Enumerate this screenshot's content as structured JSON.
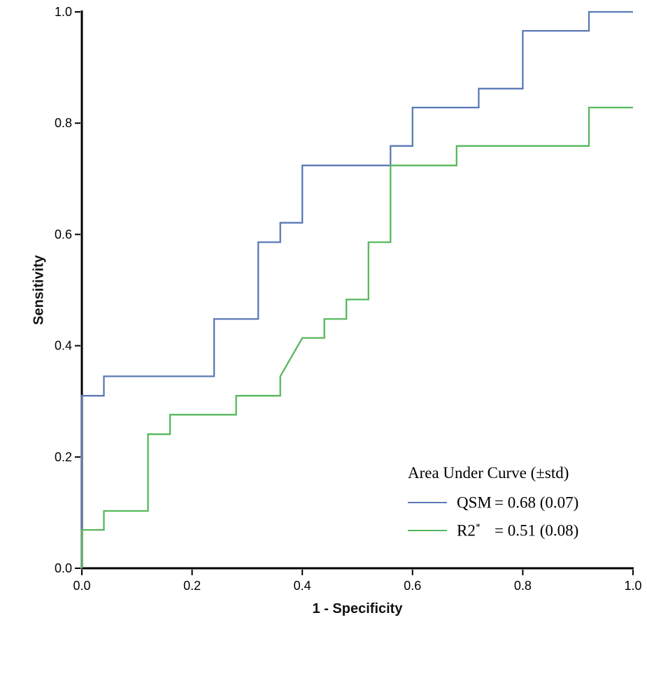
{
  "page": {
    "background": "#ffffff"
  },
  "chart_data": {
    "type": "line",
    "subtype": "roc-step-curves",
    "title": "",
    "xlabel": "1 - Specificity",
    "ylabel": "Sensitivity",
    "xlim": [
      0,
      1
    ],
    "ylim": [
      0,
      1
    ],
    "xticks": [
      "0.0",
      "0.2",
      "0.4",
      "0.6",
      "0.8",
      "1.0"
    ],
    "yticks": [
      "0.0",
      "0.2",
      "0.4",
      "0.6",
      "0.8",
      "1.0"
    ],
    "grid": false,
    "axis_color": "#000000",
    "legend": {
      "position": "lower-right",
      "title": "Area Under Curve (±std)",
      "entries": [
        {
          "name": "QSM",
          "sup": "",
          "value": "= 0.68 (0.07)",
          "color": "#5a79b5"
        },
        {
          "name": "R2",
          "sup": "*",
          "value": "= 0.51 (0.08)",
          "color": "#55b85b"
        }
      ]
    },
    "series": [
      {
        "name": "QSM",
        "auc": 0.68,
        "auc_std": 0.07,
        "color": "#5a79b5",
        "points": [
          [
            0,
            0
          ],
          [
            0,
            0.31
          ],
          [
            0.04,
            0.31
          ],
          [
            0.04,
            0.345
          ],
          [
            0.24,
            0.345
          ],
          [
            0.24,
            0.448
          ],
          [
            0.32,
            0.448
          ],
          [
            0.32,
            0.586
          ],
          [
            0.36,
            0.586
          ],
          [
            0.36,
            0.621
          ],
          [
            0.4,
            0.621
          ],
          [
            0.4,
            0.724
          ],
          [
            0.56,
            0.724
          ],
          [
            0.56,
            0.759
          ],
          [
            0.6,
            0.759
          ],
          [
            0.6,
            0.828
          ],
          [
            0.72,
            0.828
          ],
          [
            0.72,
            0.862
          ],
          [
            0.8,
            0.862
          ],
          [
            0.8,
            0.966
          ],
          [
            0.92,
            0.966
          ],
          [
            0.92,
            1
          ],
          [
            1,
            1
          ]
        ]
      },
      {
        "name": "R2*",
        "auc": 0.51,
        "auc_std": 0.08,
        "color": "#55b85b",
        "points": [
          [
            0,
            0
          ],
          [
            0,
            0.069
          ],
          [
            0.04,
            0.069
          ],
          [
            0.04,
            0.103
          ],
          [
            0.12,
            0.103
          ],
          [
            0.12,
            0.241
          ],
          [
            0.16,
            0.241
          ],
          [
            0.16,
            0.276
          ],
          [
            0.28,
            0.276
          ],
          [
            0.28,
            0.31
          ],
          [
            0.36,
            0.31
          ],
          [
            0.36,
            0.345
          ],
          [
            0.4,
            0.414
          ],
          [
            0.44,
            0.414
          ],
          [
            0.44,
            0.448
          ],
          [
            0.48,
            0.448
          ],
          [
            0.48,
            0.483
          ],
          [
            0.52,
            0.483
          ],
          [
            0.52,
            0.586
          ],
          [
            0.56,
            0.586
          ],
          [
            0.56,
            0.724
          ],
          [
            0.68,
            0.724
          ],
          [
            0.68,
            0.759
          ],
          [
            0.92,
            0.759
          ],
          [
            0.92,
            0.828
          ],
          [
            1,
            0.828
          ]
        ]
      }
    ]
  }
}
